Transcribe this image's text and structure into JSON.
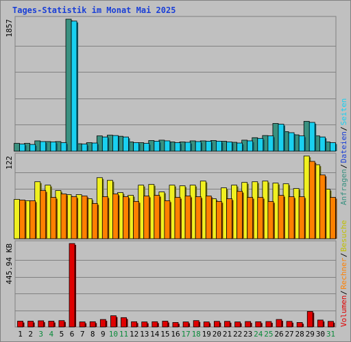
{
  "title": "Tages-Statistik im Monat Mai 2025",
  "colors": {
    "background": "#ffffff",
    "frame": "#c0c0c0",
    "border": "#808080",
    "title": "#1a3fd6",
    "gridline": "#808080",
    "anfragen": "#3a9180",
    "dateien": "#19d0f0",
    "seiten": "#19d0f0",
    "besuche": "#f0f020",
    "rechner": "#ff8000",
    "volumen": "#e00000",
    "separator": "#000000",
    "weekday": "#000000",
    "weekend": "#0a8a3a"
  },
  "legend": {
    "upper": [
      {
        "label": "Anfragen",
        "color": "#3a9180"
      },
      {
        "label": "Dateien",
        "color": "#1a3fd6"
      },
      {
        "label": "Seiten",
        "color": "#19d0f0"
      }
    ],
    "lower": [
      {
        "label": "Volumen",
        "color": "#e00000"
      },
      {
        "label": "Rechner",
        "color": "#ff8000"
      },
      {
        "label": "Besuche",
        "color": "#c0c000"
      }
    ],
    "separator": "/"
  },
  "chart_data": [
    {
      "type": "bar",
      "axis_label": "1857",
      "ylim": [
        0,
        1857
      ],
      "categories": [
        "1",
        "2",
        "3",
        "4",
        "5",
        "6",
        "7",
        "8",
        "9",
        "10",
        "11",
        "12",
        "13",
        "14",
        "15",
        "16",
        "17",
        "18",
        "19",
        "20",
        "21",
        "22",
        "23",
        "24",
        "25",
        "26",
        "27",
        "28",
        "29",
        "30",
        "31"
      ],
      "weekend": [
        "3",
        "4",
        "10",
        "11",
        "17",
        "18",
        "24",
        "25",
        "31"
      ],
      "series": [
        {
          "name": "Anfragen",
          "values": [
            110,
            110,
            145,
            135,
            135,
            1857,
            105,
            120,
            215,
            225,
            210,
            130,
            120,
            150,
            155,
            130,
            130,
            145,
            145,
            150,
            140,
            125,
            155,
            190,
            220,
            390,
            275,
            230,
            420,
            215,
            130
          ]
        },
        {
          "name": "Dateien",
          "values": [
            100,
            95,
            135,
            130,
            120,
            1830,
            100,
            115,
            200,
            220,
            200,
            120,
            110,
            140,
            145,
            120,
            125,
            135,
            140,
            140,
            130,
            115,
            145,
            180,
            215,
            380,
            260,
            215,
            405,
            200,
            120
          ]
        }
      ]
    },
    {
      "type": "bar",
      "axis_label": "122",
      "ylim": [
        0,
        122
      ],
      "series": [
        {
          "name": "Besuche",
          "values": [
            58,
            56,
            84,
            79,
            71,
            65,
            65,
            59,
            90,
            86,
            68,
            64,
            79,
            80,
            69,
            79,
            78,
            79,
            85,
            59,
            75,
            79,
            83,
            84,
            85,
            82,
            81,
            74,
            122,
            109,
            73
          ]
        },
        {
          "name": "Rechner",
          "values": [
            57,
            56,
            71,
            61,
            66,
            62,
            63,
            52,
            62,
            66,
            62,
            55,
            63,
            64,
            56,
            61,
            63,
            62,
            63,
            55,
            59,
            70,
            61,
            61,
            55,
            64,
            62,
            62,
            114,
            94,
            61
          ]
        }
      ]
    },
    {
      "type": "bar",
      "axis_label": "445.94 KB",
      "ylim": [
        0,
        445.94
      ],
      "series": [
        {
          "name": "Volumen",
          "values": [
            31,
            31,
            33,
            31,
            34,
            445.94,
            27,
            28,
            40,
            60,
            50,
            28,
            27,
            28,
            31,
            24,
            27,
            34,
            27,
            30,
            30,
            27,
            29,
            28,
            29,
            40,
            30,
            24,
            83,
            37,
            30
          ]
        }
      ]
    }
  ]
}
